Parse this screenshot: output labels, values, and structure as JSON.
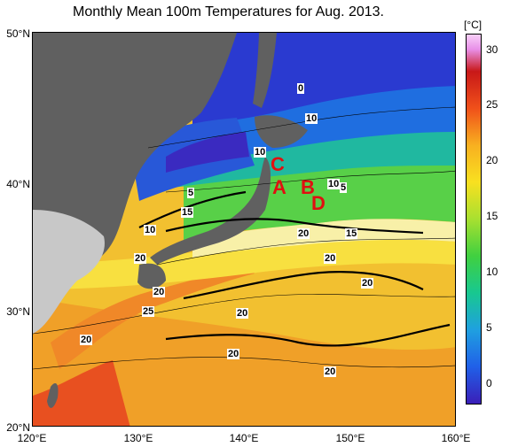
{
  "title": "Monthly Mean 100m Temperatures for Aug. 2013.",
  "colorbar": {
    "unit": "[°C]",
    "ticks": [
      "30",
      "25",
      "20",
      "15",
      "10",
      "5",
      "0"
    ]
  },
  "axes": {
    "lat_labels": [
      "50°N",
      "40°N",
      "30°N",
      "20°N"
    ],
    "lon_labels": [
      "120°E",
      "130°E",
      "140°E",
      "150°E",
      "160°E"
    ]
  },
  "markers": [
    "C",
    "A",
    "B",
    "D"
  ],
  "contour_labels": [
    "0",
    "10",
    "10",
    "5",
    "15",
    "10",
    "5",
    "10",
    "20",
    "15",
    "20",
    "20",
    "20",
    "20",
    "25",
    "20",
    "20",
    "20",
    "20"
  ],
  "colors": {
    "land": "#606060",
    "land_light": "#c8c8c8",
    "marker": "#e01010"
  }
}
